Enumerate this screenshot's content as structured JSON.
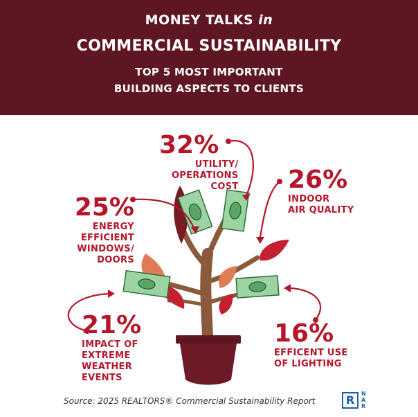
{
  "header": {
    "title_line1_prefix": "MONEY TALKS",
    "title_line1_em": "in",
    "title_line2": "COMMERCIAL SUSTAINABILITY",
    "subtitle_line1": "TOP 5 MOST IMPORTANT",
    "subtitle_line2": "BUILDING ASPECTS TO CLIENTS"
  },
  "stats": [
    {
      "pct": "32%",
      "label": "UTILITY/\nOPERATIONS\nCOST"
    },
    {
      "pct": "26%",
      "label": "INDOOR\nAIR QUALITY"
    },
    {
      "pct": "25%",
      "label": "ENERGY\nEFFICIENT\nWINDOWS/\nDOORS"
    },
    {
      "pct": "21%",
      "label": "IMPACT OF\nEXTREME\nWEATHER\nEVENTS"
    },
    {
      "pct": "16%",
      "label": "EFFICENT USE\nOF LIGHTING"
    }
  ],
  "footer": {
    "source": "Source: 2025 REALTORS® Commercial Sustainability Report"
  },
  "logo": {
    "mark": "R",
    "text": "N\nA\nR"
  },
  "colors": {
    "header_bg": "#5e1622",
    "accent": "#b5162a",
    "pot": "#6b1a26",
    "trunk": "#8a5a3a",
    "money": "#7cc08a"
  },
  "icons": [
    "tree-illustration",
    "money-bill-icon",
    "arrow-icon",
    "nar-logo-icon"
  ]
}
